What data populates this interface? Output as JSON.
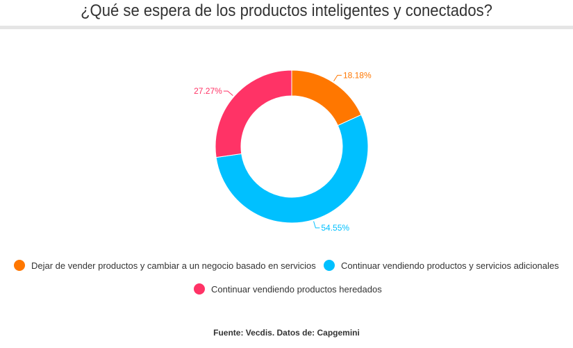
{
  "chart_data": {
    "type": "pie",
    "donut": true,
    "title": "¿Qué se espera de los productos inteligentes y conectados?",
    "categories": [
      "Dejar de vender productos y cambiar a un negocio basado en servicios",
      "Continuar vendiendo productos y servicios adicionales",
      "Continuar vendiendo productos heredados"
    ],
    "values": [
      18.18,
      54.55,
      27.27
    ],
    "labels": [
      "18.18%",
      "54.55%",
      "27.27%"
    ],
    "colors": [
      "#ff7700",
      "#00c0ff",
      "#ff3366"
    ],
    "legend": "bottom"
  },
  "source": "Fuente: Vecdis. Datos de: Capgemini"
}
